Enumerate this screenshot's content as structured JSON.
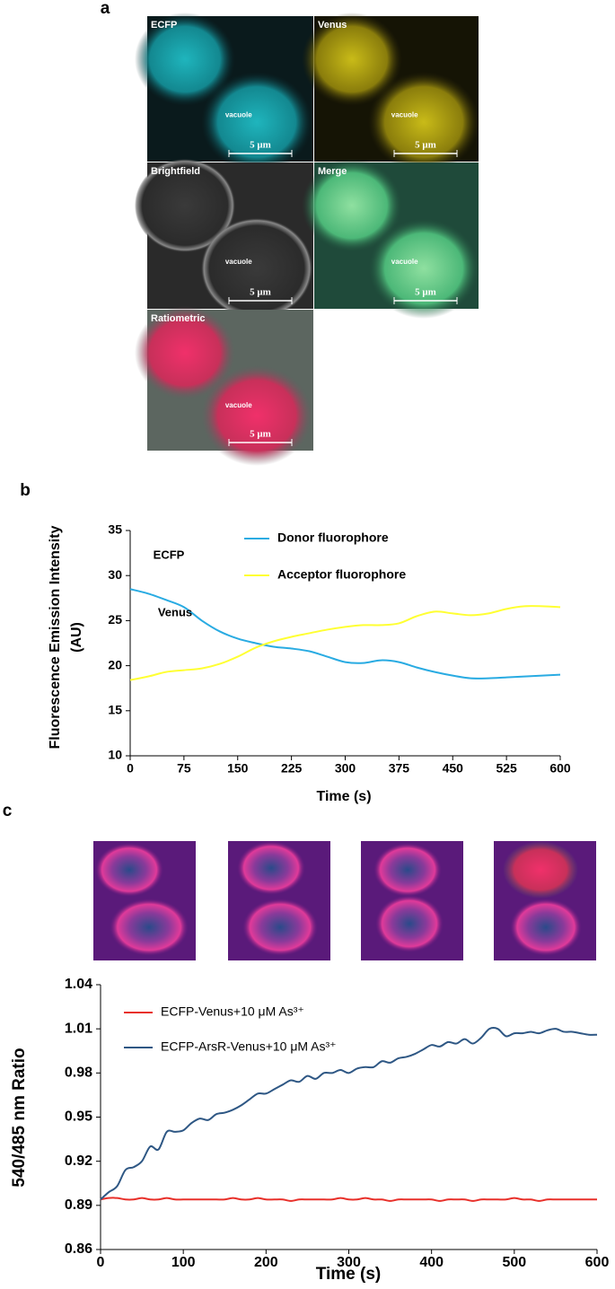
{
  "panel_labels": [
    "a",
    "b",
    "c"
  ],
  "microscopy": [
    {
      "label": "ECFP",
      "annotation": "vacuole",
      "scale_bar": "5 μm"
    },
    {
      "label": "Venus",
      "annotation": "vacuole",
      "scale_bar": "5 μm"
    },
    {
      "label": "Brightfield",
      "annotation": "vacuole",
      "scale_bar": "5 μm"
    },
    {
      "label": "Merge",
      "annotation": "vacuole",
      "scale_bar": "5 μm"
    },
    {
      "label": "Ratiometric",
      "annotation": "vacuole",
      "scale_bar": "5 μm"
    }
  ],
  "chart_data": [
    {
      "type": "line",
      "xlabel": "Time (s)",
      "ylabel": [
        "Fluorescence Emission Intensity",
        "(AU)"
      ],
      "annotations": [
        "ECFP",
        "Venus"
      ],
      "x": [
        0,
        25,
        50,
        75,
        100,
        125,
        150,
        175,
        200,
        225,
        250,
        275,
        300,
        325,
        350,
        375,
        400,
        425,
        450,
        475,
        500,
        525,
        550,
        575,
        600
      ],
      "series": [
        {
          "name": "Donor fluorophore",
          "color": "#29abe2",
          "values": [
            28.5,
            28,
            27.3,
            26.5,
            25,
            23.8,
            23,
            22.5,
            22.1,
            21.9,
            21.6,
            21,
            20.4,
            20.3,
            20.6,
            20.4,
            19.8,
            19.3,
            18.9,
            18.6,
            18.6,
            18.7,
            18.8,
            18.9,
            19
          ]
        },
        {
          "name": "Acceptor fluorophore",
          "color": "#ffff33",
          "values": [
            18.4,
            18.8,
            19.3,
            19.5,
            19.7,
            20.2,
            21,
            22,
            22.7,
            23.2,
            23.6,
            24,
            24.3,
            24.5,
            24.5,
            24.7,
            25.5,
            26,
            25.8,
            25.6,
            25.8,
            26.3,
            26.6,
            26.6,
            26.5
          ]
        }
      ],
      "xlim": [
        0,
        600
      ],
      "xticks": [
        0,
        75,
        150,
        225,
        300,
        375,
        450,
        525,
        600
      ],
      "ylim": [
        10,
        35
      ],
      "yticks": [
        10,
        15,
        20,
        25,
        30,
        35
      ]
    },
    {
      "type": "line",
      "xlabel": "Time (s)",
      "ylabel": "540/485 nm Ratio",
      "x": [
        0,
        10,
        20,
        30,
        40,
        50,
        60,
        70,
        80,
        90,
        100,
        110,
        120,
        130,
        140,
        150,
        160,
        170,
        180,
        190,
        200,
        210,
        220,
        230,
        240,
        250,
        260,
        270,
        280,
        290,
        300,
        310,
        320,
        330,
        340,
        350,
        360,
        370,
        380,
        390,
        400,
        410,
        420,
        430,
        440,
        450,
        460,
        470,
        480,
        490,
        500,
        510,
        520,
        530,
        540,
        550,
        560,
        570,
        580,
        590,
        600
      ],
      "series": [
        {
          "name": "ECFP-Venus+10 μM As³⁺",
          "color": "#e8302a",
          "values": [
            0.894,
            0.895,
            0.895,
            0.894,
            0.894,
            0.895,
            0.894,
            0.894,
            0.895,
            0.894,
            0.894,
            0.894,
            0.894,
            0.894,
            0.894,
            0.894,
            0.895,
            0.894,
            0.894,
            0.895,
            0.894,
            0.894,
            0.894,
            0.893,
            0.894,
            0.894,
            0.894,
            0.894,
            0.894,
            0.895,
            0.894,
            0.894,
            0.895,
            0.894,
            0.894,
            0.893,
            0.894,
            0.894,
            0.894,
            0.894,
            0.894,
            0.893,
            0.894,
            0.894,
            0.894,
            0.893,
            0.894,
            0.894,
            0.894,
            0.894,
            0.895,
            0.894,
            0.894,
            0.893,
            0.894,
            0.894,
            0.894,
            0.894,
            0.894,
            0.894,
            0.894
          ]
        },
        {
          "name": "ECFP-ArsR-Venus+10 μM As³⁺",
          "color": "#2e5784",
          "values": [
            0.894,
            0.899,
            0.903,
            0.914,
            0.916,
            0.92,
            0.93,
            0.928,
            0.94,
            0.94,
            0.941,
            0.946,
            0.949,
            0.948,
            0.952,
            0.953,
            0.955,
            0.958,
            0.962,
            0.966,
            0.966,
            0.969,
            0.972,
            0.975,
            0.974,
            0.978,
            0.976,
            0.98,
            0.98,
            0.982,
            0.98,
            0.983,
            0.984,
            0.984,
            0.988,
            0.987,
            0.99,
            0.991,
            0.993,
            0.996,
            0.999,
            0.998,
            1.001,
            1,
            1.003,
            1,
            1.004,
            1.01,
            1.01,
            1.005,
            1.007,
            1.007,
            1.008,
            1.007,
            1.009,
            1.01,
            1.008,
            1.008,
            1.007,
            1.006,
            1.006
          ]
        }
      ],
      "xlim": [
        0,
        600
      ],
      "xticks": [
        0,
        100,
        200,
        300,
        400,
        500,
        600
      ],
      "ylim": [
        0.86,
        1.04
      ],
      "yticks": [
        0.86,
        0.89,
        0.92,
        0.95,
        0.98,
        1.01,
        1.04
      ]
    }
  ]
}
